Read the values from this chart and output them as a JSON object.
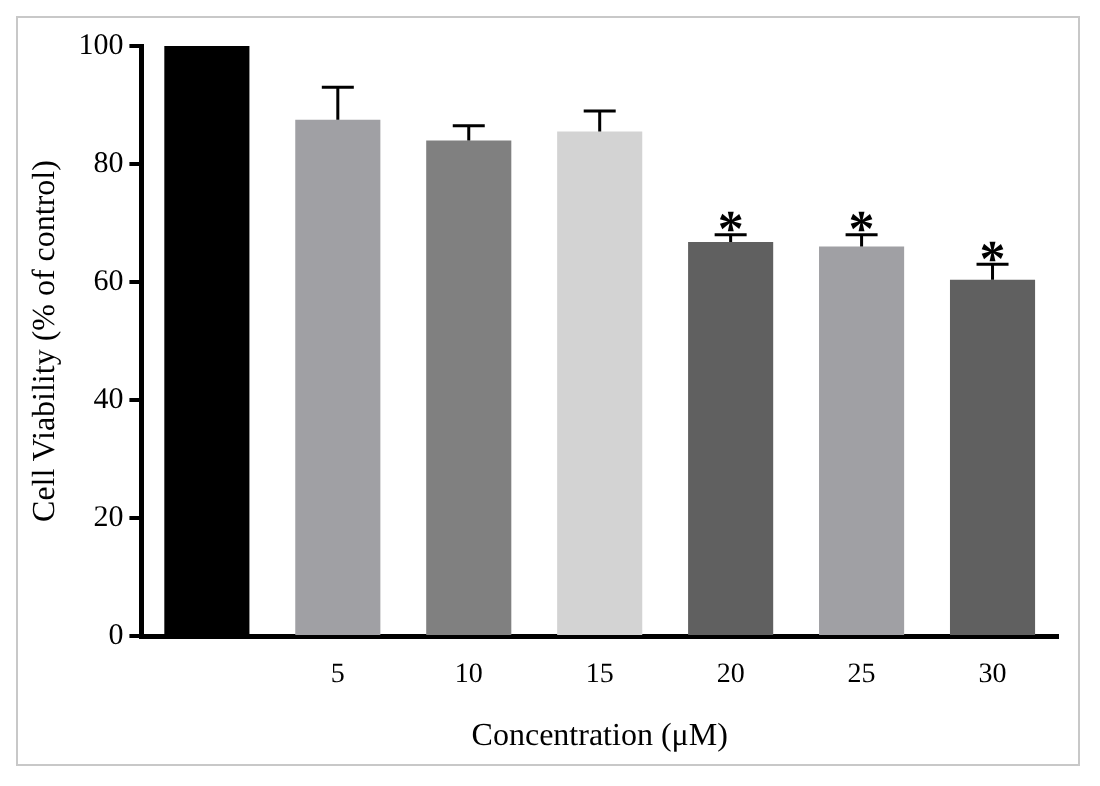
{
  "chart_data": {
    "type": "bar",
    "xlabel": "Concentration (μM)",
    "ylabel": "Cell Viability (% of control)",
    "categories": [
      null,
      "5",
      "10",
      "15",
      "20",
      "25",
      "30"
    ],
    "values": [
      100,
      87.5,
      84,
      85.5,
      66.8,
      66,
      60.4
    ],
    "colors": [
      "#000000",
      "#a0a0a4",
      "#808080",
      "#d3d3d3",
      "#606060",
      "#a0a0a4",
      "#606060"
    ],
    "errors": [
      null,
      [
        87.5,
        93
      ],
      [
        84,
        86.5
      ],
      [
        85.5,
        89
      ],
      [
        66.8,
        68
      ],
      [
        66,
        68
      ],
      [
        60.4,
        63
      ]
    ],
    "ylim": [
      0,
      100
    ],
    "yticks": [
      0,
      20,
      40,
      60,
      80,
      100
    ],
    "grid": false,
    "legend": false,
    "annotations": [
      {
        "text": "*",
        "x": "20",
        "y": 68
      },
      {
        "text": "*",
        "x": "25",
        "y": 68
      },
      {
        "text": "*",
        "x": "30",
        "y": 63
      }
    ]
  }
}
